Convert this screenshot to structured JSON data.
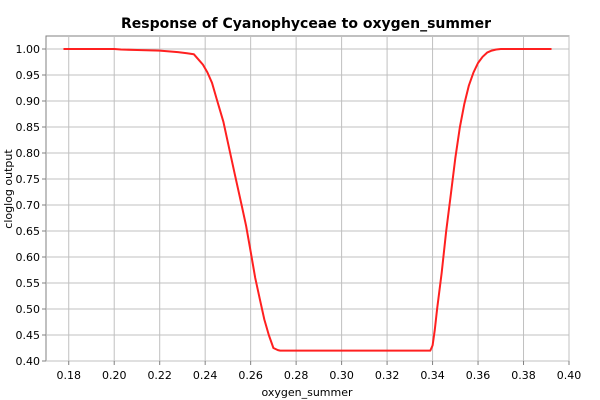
{
  "chart_data": {
    "type": "line",
    "title": "Response of Cyanophyceae to oxygen_summer",
    "xlabel": "oxygen_summer",
    "ylabel": "cloglog output",
    "xlim": [
      0.17,
      0.4
    ],
    "ylim": [
      0.4,
      1.025
    ],
    "xticks": [
      0.18,
      0.2,
      0.22,
      0.24,
      0.26,
      0.28,
      0.3,
      0.32,
      0.34,
      0.36,
      0.38,
      0.4
    ],
    "xtick_labels": [
      "0.18",
      "0.20",
      "0.22",
      "0.24",
      "0.26",
      "0.28",
      "0.30",
      "0.32",
      "0.34",
      "0.36",
      "0.38",
      "0.40"
    ],
    "yticks": [
      0.4,
      0.45,
      0.5,
      0.55,
      0.6,
      0.65,
      0.7,
      0.75,
      0.8,
      0.85,
      0.9,
      0.95,
      1.0
    ],
    "ytick_labels": [
      "0.40",
      "0.45",
      "0.50",
      "0.55",
      "0.60",
      "0.65",
      "0.70",
      "0.75",
      "0.80",
      "0.85",
      "0.90",
      "0.95",
      "1.00"
    ],
    "grid": true,
    "legend": "none",
    "color": "#ff2020",
    "series": [
      {
        "x": [
          0.178,
          0.2,
          0.203,
          0.21,
          0.22,
          0.228,
          0.232,
          0.235,
          0.237,
          0.239,
          0.241,
          0.243,
          0.245,
          0.248,
          0.25,
          0.253,
          0.256,
          0.258,
          0.26,
          0.262,
          0.264,
          0.266,
          0.268,
          0.27,
          0.272,
          0.273,
          0.275,
          0.3,
          0.32,
          0.339,
          0.34,
          0.341,
          0.342,
          0.344,
          0.346,
          0.348,
          0.35,
          0.352,
          0.354,
          0.356,
          0.358,
          0.36,
          0.362,
          0.364,
          0.366,
          0.368,
          0.37,
          0.38,
          0.392
        ],
        "y": [
          1.0,
          1.0,
          0.999,
          0.998,
          0.997,
          0.994,
          0.992,
          0.99,
          0.98,
          0.97,
          0.955,
          0.935,
          0.905,
          0.86,
          0.82,
          0.76,
          0.7,
          0.66,
          0.61,
          0.56,
          0.52,
          0.48,
          0.45,
          0.425,
          0.421,
          0.42,
          0.42,
          0.42,
          0.42,
          0.42,
          0.43,
          0.46,
          0.5,
          0.57,
          0.65,
          0.72,
          0.79,
          0.85,
          0.895,
          0.93,
          0.955,
          0.973,
          0.985,
          0.993,
          0.997,
          0.999,
          1.0,
          1.0,
          1.0
        ]
      }
    ]
  }
}
